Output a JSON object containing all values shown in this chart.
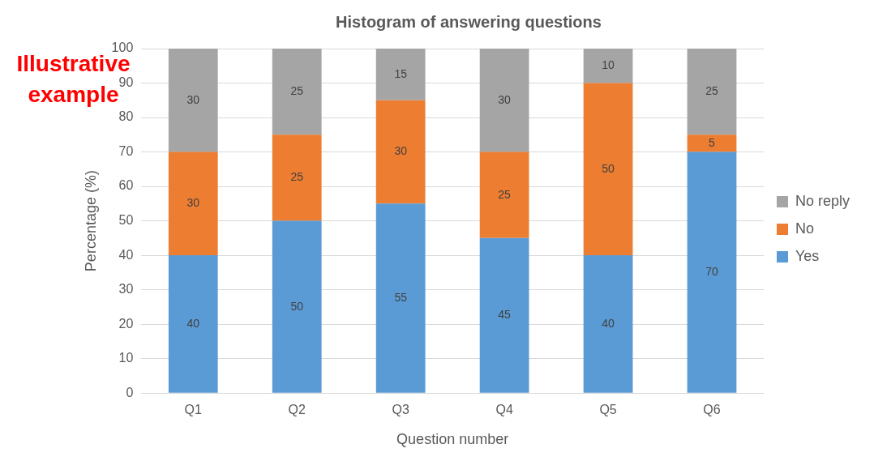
{
  "chart_data": {
    "type": "bar",
    "title": "Histogram of answering questions",
    "xlabel": "Question number",
    "ylabel": "Percentage (%)",
    "categories": [
      "Q1",
      "Q2",
      "Q3",
      "Q4",
      "Q5",
      "Q6"
    ],
    "series": [
      {
        "name": "Yes",
        "color": "#5b9bd5",
        "values": [
          40,
          50,
          55,
          45,
          40,
          70
        ]
      },
      {
        "name": "No",
        "color": "#ed7d31",
        "values": [
          30,
          25,
          30,
          25,
          50,
          5
        ]
      },
      {
        "name": "No reply",
        "color": "#a5a5a5",
        "values": [
          30,
          25,
          15,
          30,
          10,
          25
        ]
      }
    ],
    "stacked": true,
    "ylim": [
      0,
      100
    ],
    "yticks": [
      0,
      10,
      20,
      30,
      40,
      50,
      60,
      70,
      80,
      90,
      100
    ],
    "grid": "y",
    "legend": "right",
    "data_labels": true,
    "annotations": [
      "Illustrative example"
    ]
  }
}
